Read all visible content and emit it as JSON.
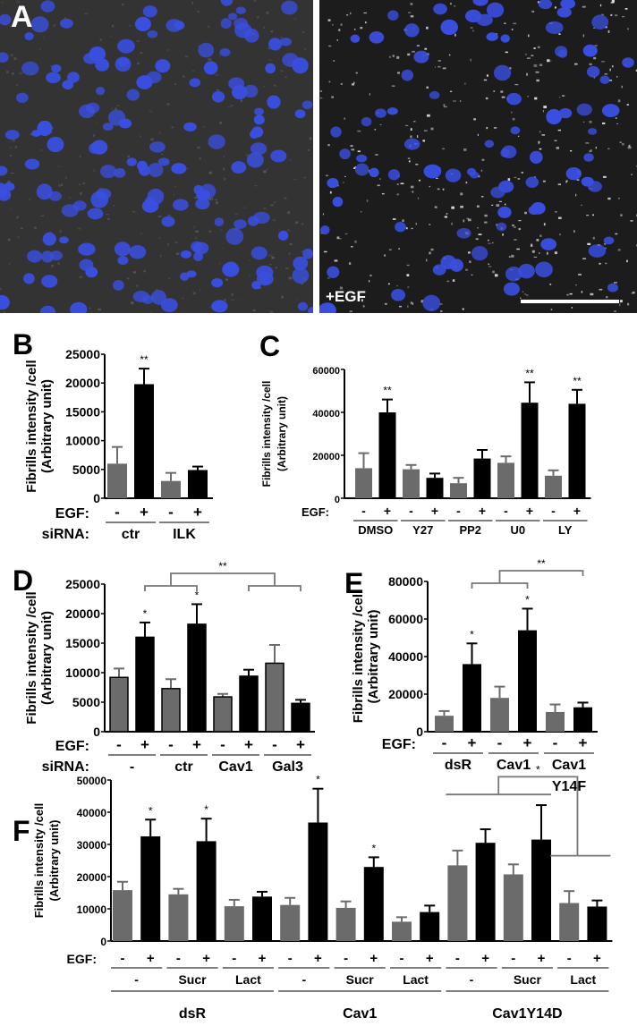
{
  "panel_A": {
    "letter": "A",
    "right_label": "+EGF",
    "nucleus_color": "#3a4fe0"
  },
  "colors": {
    "minus_bar": "#6b6b6b",
    "plus_bar": "#000000",
    "bracket": "#777777"
  },
  "chart_data": [
    {
      "panel": "B",
      "type": "bar",
      "ylabel_lines": [
        "Fibrills intensity /cell",
        "(Arbitrary unit)"
      ],
      "ylim": [
        0,
        25000
      ],
      "yticks": [
        "0",
        "5000",
        "10000",
        "15000",
        "20000",
        "25000"
      ],
      "row_labels": [
        "EGF:",
        "siRNA:"
      ],
      "egf": [
        "-",
        "+",
        "-",
        "+"
      ],
      "groups": [
        {
          "label": "ctr"
        },
        {
          "label": "ILK"
        }
      ],
      "values": [
        6000,
        19800,
        3000,
        4900
      ],
      "errors": [
        2900,
        2700,
        1400,
        600
      ],
      "stars": [
        {
          "bar": 1,
          "label": "**"
        }
      ]
    },
    {
      "panel": "C",
      "type": "bar",
      "ylabel_lines": [
        "Fibrills intensity /cell",
        "(Arbitrary unit)"
      ],
      "ylim": [
        0,
        60000
      ],
      "yticks": [
        "0",
        "20000",
        "40000",
        "60000"
      ],
      "row_labels": [
        "EGF:"
      ],
      "egf": [
        "-",
        "+",
        "-",
        "+",
        "-",
        "+",
        "-",
        "+",
        "-",
        "+"
      ],
      "groups": [
        {
          "label": "DMSO"
        },
        {
          "label": "Y27"
        },
        {
          "label": "PP2"
        },
        {
          "label": "U0"
        },
        {
          "label": "LY"
        }
      ],
      "values": [
        14000,
        40000,
        13500,
        9500,
        7000,
        18500,
        16500,
        44500,
        10500,
        44000
      ],
      "errors": [
        7000,
        6000,
        2000,
        2000,
        2500,
        4000,
        3000,
        9500,
        2500,
        6500
      ],
      "stars": [
        {
          "bar": 1,
          "label": "**"
        },
        {
          "bar": 7,
          "label": "**"
        },
        {
          "bar": 9,
          "label": "**"
        }
      ]
    },
    {
      "panel": "D",
      "type": "bar",
      "ylabel_lines": [
        "Fibrills intensity /cell",
        "(Arbitrary unit)"
      ],
      "ylim": [
        0,
        25000
      ],
      "yticks": [
        "0",
        "5000",
        "10000",
        "15000",
        "20000",
        "25000"
      ],
      "row_labels": [
        "EGF:",
        "siRNA:"
      ],
      "egf": [
        "-",
        "+",
        "-",
        "+",
        "-",
        "+",
        "-",
        "+"
      ],
      "groups": [
        {
          "label": "-"
        },
        {
          "label": "ctr"
        },
        {
          "label": "Cav1"
        },
        {
          "label": "Gal3"
        }
      ],
      "values": [
        9200,
        16000,
        7300,
        18200,
        5900,
        9400,
        11600,
        4800
      ],
      "errors": [
        1500,
        2500,
        1600,
        3400,
        500,
        1100,
        3100,
        600
      ],
      "stars": [
        {
          "bar": 1,
          "label": "*"
        },
        {
          "bar": 3,
          "label": "*"
        }
      ],
      "bracket": {
        "left": [
          1,
          3
        ],
        "right": [
          5,
          7
        ],
        "label": "**"
      }
    },
    {
      "panel": "E",
      "type": "bar",
      "ylabel_lines": [
        "Fibrills intensity /cell",
        "(Arbitrary unit)"
      ],
      "ylim": [
        0,
        80000
      ],
      "yticks": [
        "0",
        "20000",
        "40000",
        "60000",
        "80000"
      ],
      "row_labels": [
        "EGF:"
      ],
      "egf": [
        "-",
        "+",
        "-",
        "+",
        "-",
        "+"
      ],
      "groups": [
        {
          "label": "dsR"
        },
        {
          "label": "Cav1"
        },
        {
          "label": "Cav1",
          "label2": "Y14F"
        }
      ],
      "values": [
        8500,
        36000,
        18000,
        54000,
        10500,
        13000
      ],
      "errors": [
        2500,
        11000,
        6000,
        11500,
        4000,
        2500
      ],
      "stars": [
        {
          "bar": 1,
          "label": "*"
        },
        {
          "bar": 3,
          "label": "*"
        }
      ],
      "bracket": {
        "left": [
          1,
          3
        ],
        "right": [
          5,
          5
        ],
        "label": "**"
      }
    },
    {
      "panel": "F",
      "type": "bar",
      "ylabel_lines": [
        "Fibrills intensity /cell",
        "(Arbitrary unit)"
      ],
      "ylim": [
        0,
        50000
      ],
      "yticks": [
        "0",
        "10000",
        "20000",
        "30000",
        "40000",
        "50000"
      ],
      "row_labels": [
        "EGF:"
      ],
      "egf": [
        "-",
        "+",
        "-",
        "+",
        "-",
        "+",
        "-",
        "+",
        "-",
        "+",
        "-",
        "+",
        "-",
        "+",
        "-",
        "+",
        "-",
        "+"
      ],
      "groups": [
        {
          "label": "-"
        },
        {
          "label": "Sucr"
        },
        {
          "label": "Lact"
        },
        {
          "label": "-"
        },
        {
          "label": "Sucr"
        },
        {
          "label": "Lact"
        },
        {
          "label": "-"
        },
        {
          "label": "Sucr"
        },
        {
          "label": "Lact"
        }
      ],
      "supergroups": [
        {
          "label": "dsR"
        },
        {
          "label": "Cav1"
        },
        {
          "label": "Cav1Y14D"
        }
      ],
      "values": [
        15800,
        32500,
        14500,
        31000,
        10800,
        13800,
        11200,
        36800,
        10300,
        23000,
        6000,
        9000,
        23500,
        30500,
        20700,
        31500,
        11800,
        10700
      ],
      "errors": [
        2600,
        5200,
        1700,
        7000,
        2000,
        1500,
        2200,
        10500,
        2000,
        3000,
        1400,
        2000,
        4600,
        4200,
        3100,
        10700,
        3700,
        1900
      ],
      "stars": [
        {
          "bar": 1,
          "label": "*"
        },
        {
          "bar": 3,
          "label": "*"
        },
        {
          "bar": 7,
          "label": "*"
        },
        {
          "bar": 9,
          "label": "*"
        }
      ],
      "bracket": {
        "left": [
          12,
          15
        ],
        "right": [
          16,
          17
        ],
        "label": "*"
      }
    }
  ]
}
